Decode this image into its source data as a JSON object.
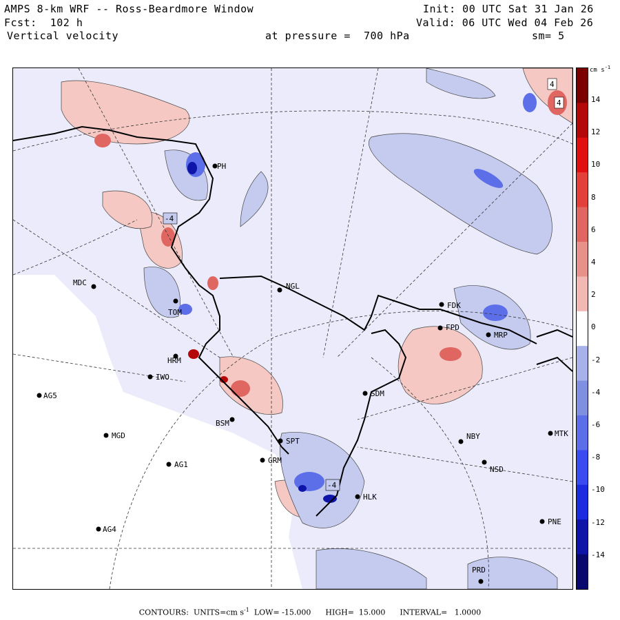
{
  "header": {
    "title": "AMPS 8-km WRF -- Ross-Beardmore Window",
    "init": "Init: 00 UTC Sat 31 Jan 26",
    "forecast": "Fcst:  102 h",
    "valid": "Valid: 06 UTC Wed 04 Feb 26",
    "variable": "Vertical velocity",
    "pressure": "at pressure =  700 hPa",
    "smoothing": "sm= 5"
  },
  "colorbar": {
    "units": "cm s",
    "units_exp": "-1",
    "labels": [
      "14",
      "12",
      "10",
      "8",
      "6",
      "4",
      "2",
      "0",
      "-2",
      "-4",
      "-6",
      "-8",
      "-10",
      "-12",
      "-14"
    ],
    "colors": [
      "#08086e",
      "#0e14a8",
      "#1c2ae0",
      "#3a4cf0",
      "#5c6ee8",
      "#8090e0",
      "#a7b2ea",
      "#ffffff",
      "#f2b9b4",
      "#e8908a",
      "#e06662",
      "#e4403a",
      "#e01010",
      "#b40808",
      "#7a0000"
    ]
  },
  "stations": [
    {
      "id": "MDC"
    },
    {
      "id": "NGL"
    },
    {
      "id": "FDK"
    },
    {
      "id": "FPD"
    },
    {
      "id": "MRP"
    },
    {
      "id": "IWO"
    },
    {
      "id": "AG5"
    },
    {
      "id": "SDM"
    },
    {
      "id": "MGD"
    },
    {
      "id": "NBY"
    },
    {
      "id": "MTK"
    },
    {
      "id": "AG1"
    },
    {
      "id": "NSD"
    },
    {
      "id": "HLK"
    },
    {
      "id": "AG4"
    },
    {
      "id": "PNE"
    },
    {
      "id": "PRD"
    },
    {
      "id": "BSM"
    },
    {
      "id": "SPT"
    },
    {
      "id": "GRM"
    },
    {
      "id": "PH"
    },
    {
      "id": "TOM"
    },
    {
      "id": "HRM"
    }
  ],
  "contour_labels": [
    "4",
    "4",
    "-4",
    "-4"
  ],
  "footer": {
    "contours_label": "CONTOURS:",
    "units_label": "UNITS=cm s",
    "units_exp": "-1",
    "low": "LOW= -15.000",
    "high": "HIGH=  15.000",
    "interval": "INTERVAL=   1.0000"
  }
}
